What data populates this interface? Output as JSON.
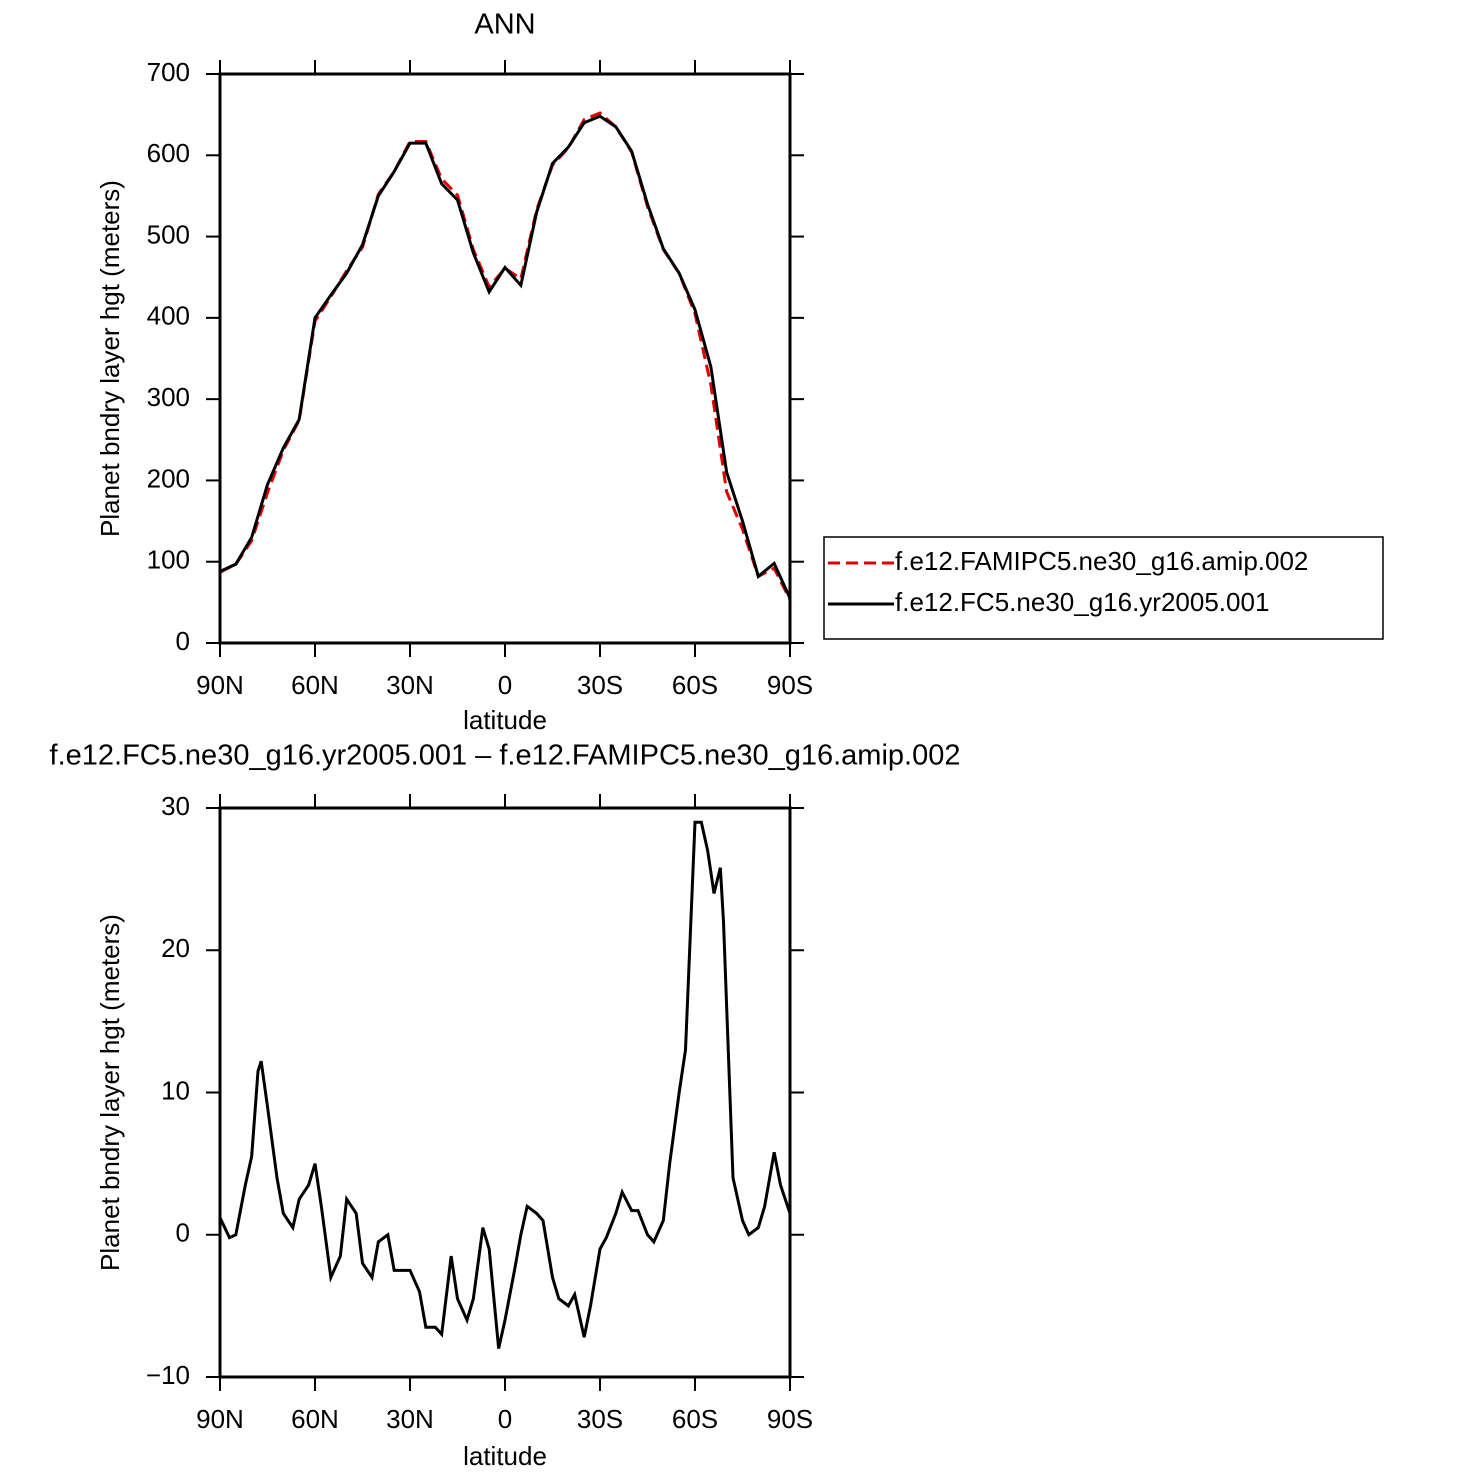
{
  "chart_data": [
    {
      "type": "line",
      "title": "ANN",
      "xlabel": "latitude",
      "ylabel": "Planet bndry layer hgt (meters)",
      "xlim": [
        90,
        -90
      ],
      "xticks": [
        {
          "value": 90,
          "label": "90N"
        },
        {
          "value": 60,
          "label": "60N"
        },
        {
          "value": 30,
          "label": "30N"
        },
        0,
        {
          "value": -30,
          "label": "30S"
        },
        {
          "value": -60,
          "label": "60S"
        },
        {
          "value": -90,
          "label": "90S"
        }
      ],
      "ylim": [
        0,
        700
      ],
      "yticks": [
        0,
        100,
        200,
        300,
        400,
        500,
        600,
        700
      ],
      "legend": "right",
      "x": [
        90,
        85,
        80,
        75,
        70,
        65,
        60,
        55,
        50,
        45,
        40,
        35,
        30,
        25,
        20,
        15,
        10,
        5,
        0,
        -5,
        -10,
        -15,
        -20,
        -25,
        -30,
        -35,
        -40,
        -45,
        -50,
        -55,
        -60,
        -65,
        -70,
        -75,
        -80,
        -85,
        -90
      ],
      "series": [
        {
          "name": "f.e12.FAMIPC5.ne30_g16.amip.002",
          "color": "#e00000",
          "line_style": "dashed",
          "values": [
            87,
            97,
            126,
            185,
            237,
            274,
            396,
            426,
            458,
            487,
            552,
            580,
            617,
            617,
            571,
            551,
            484,
            438,
            461,
            448,
            533,
            588,
            609,
            644,
            652,
            635,
            604,
            537,
            484,
            455,
            405,
            318,
            186,
            140,
            82,
            92,
            53
          ]
        },
        {
          "name": "f.e12.FC5.ne30_g16.yr2005.001",
          "color": "#000000",
          "line_style": "solid",
          "values": [
            88,
            97,
            130,
            195,
            240,
            275,
            400,
            428,
            455,
            490,
            550,
            580,
            615,
            615,
            565,
            545,
            480,
            432,
            462,
            440,
            530,
            590,
            610,
            640,
            648,
            635,
            605,
            540,
            485,
            455,
            410,
            340,
            210,
            150,
            82,
            98,
            55
          ]
        }
      ]
    },
    {
      "type": "line",
      "title": "f.e12.FC5.ne30_g16.yr2005.001 – f.e12.FAMIPC5.ne30_g16.amip.002",
      "xlabel": "latitude",
      "ylabel": "Planet bndry layer hgt (meters)",
      "xlim": [
        90,
        -90
      ],
      "xticks": [
        {
          "value": 90,
          "label": "90N"
        },
        {
          "value": 60,
          "label": "60N"
        },
        {
          "value": 30,
          "label": "30N"
        },
        0,
        {
          "value": -30,
          "label": "30S"
        },
        {
          "value": -60,
          "label": "60S"
        },
        {
          "value": -90,
          "label": "90S"
        }
      ],
      "ylim": [
        -10,
        30
      ],
      "yticks": [
        {
          "value": -10,
          "label": "−10"
        },
        0,
        10,
        20,
        30
      ],
      "x": [
        90,
        87,
        85,
        82,
        80,
        78,
        77,
        75,
        72,
        70,
        67,
        65,
        62,
        60,
        58,
        55,
        52,
        50,
        47,
        45,
        42,
        40,
        37,
        35,
        32,
        30,
        27,
        25,
        22,
        20,
        17,
        15,
        12,
        10,
        7,
        5,
        2,
        0,
        -3,
        -5,
        -7,
        -10,
        -12,
        -15,
        -17,
        -20,
        -22,
        -25,
        -27,
        -30,
        -32,
        -35,
        -37,
        -40,
        -42,
        -45,
        -47,
        -50,
        -52,
        -55,
        -57,
        -60,
        -62,
        -64,
        -66,
        -68,
        -69,
        -71,
        -72,
        -75,
        -77,
        -80,
        -82,
        -85,
        -87,
        -90
      ],
      "series": [
        {
          "name": "f.e12.FC5.ne30_g16.yr2005.001 – f.e12.FAMIPC5.ne30_g16.amip.002",
          "color": "#000000",
          "line_style": "solid",
          "values": [
            1.2,
            -0.2,
            0,
            3.5,
            5.5,
            11.5,
            12.2,
            9,
            4,
            1.5,
            0.5,
            2.5,
            3.5,
            5,
            2,
            -3,
            -1.5,
            2.5,
            1.5,
            -2,
            -3,
            -0.5,
            0,
            -2.5,
            -2.5,
            -2.5,
            -4,
            -6.5,
            -6.5,
            -7,
            -1.5,
            -4.5,
            -6,
            -4.5,
            0.5,
            -1,
            -8,
            -6,
            -2.5,
            0,
            2,
            1.5,
            1,
            -3,
            -4.5,
            -5,
            -4.2,
            -7.2,
            -5,
            -1,
            -0.2,
            1.5,
            3,
            1.7,
            1.7,
            0,
            -0.5,
            1,
            5,
            10,
            13,
            29,
            29,
            27,
            24,
            25.8,
            22,
            10,
            4,
            1,
            0,
            0.5,
            2,
            5.8,
            3.5,
            1.5
          ]
        }
      ]
    }
  ]
}
